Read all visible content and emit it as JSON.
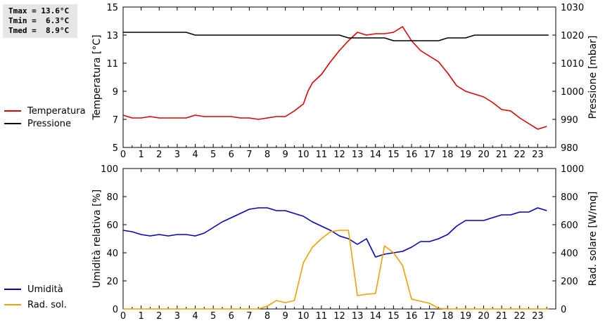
{
  "stats": {
    "tmax": "Tmax = 13.6°C",
    "tmin": "Tmin =  6.3°C",
    "tmed": "Tmed =  8.9°C"
  },
  "chart_data": [
    {
      "type": "line",
      "x_ticks": [
        "0",
        "1",
        "2",
        "3",
        "4",
        "5",
        "6",
        "7",
        "8",
        "9",
        "10",
        "11",
        "12",
        "13",
        "14",
        "15",
        "16",
        "17",
        "18",
        "19",
        "20",
        "21",
        "22",
        "23"
      ],
      "xlim": [
        0,
        24
      ],
      "ylabel": "Temperatura [°C]",
      "ylim": [
        5,
        15
      ],
      "y_ticks": [
        "5",
        "7",
        "9",
        "11",
        "13",
        "15"
      ],
      "y2label": "Pressione [mbar]",
      "y2lim": [
        980,
        1030
      ],
      "y2_ticks": [
        "980",
        "990",
        "1000",
        "1010",
        "1020",
        "1030"
      ],
      "legend": {
        "placement": "left",
        "entries": [
          "Temperatura",
          "Pressione"
        ]
      },
      "series": [
        {
          "name": "Temperatura",
          "axis": "left",
          "color": "#e00000",
          "x": [
            0,
            0.5,
            1,
            1.5,
            2,
            2.5,
            3,
            3.5,
            4,
            4.5,
            5,
            5.5,
            6,
            6.5,
            7,
            7.5,
            8,
            8.5,
            9,
            9.5,
            10,
            10.25,
            10.5,
            10.75,
            11,
            11.5,
            12,
            12.5,
            13,
            13.5,
            14,
            14.5,
            15,
            15.5,
            16,
            16.5,
            17,
            17.5,
            18,
            18.5,
            19,
            19.5,
            20,
            20.5,
            21,
            21.5,
            22,
            22.5,
            23,
            23.5
          ],
          "values": [
            7.3,
            7.1,
            7.1,
            7.2,
            7.1,
            7.1,
            7.1,
            7.1,
            7.3,
            7.2,
            7.2,
            7.2,
            7.2,
            7.1,
            7.1,
            7.0,
            7.1,
            7.2,
            7.2,
            7.6,
            8.1,
            9.0,
            9.6,
            9.9,
            10.2,
            11.1,
            11.9,
            12.6,
            13.2,
            13.0,
            13.1,
            13.1,
            13.2,
            13.6,
            12.6,
            11.9,
            11.5,
            11.1,
            10.3,
            9.4,
            9.0,
            8.8,
            8.6,
            8.2,
            7.7,
            7.6,
            7.1,
            6.7,
            6.3,
            6.5
          ]
        },
        {
          "name": "Pressione",
          "axis": "right",
          "color": "#000000",
          "x": [
            0,
            3.5,
            4,
            12,
            12.5,
            14.5,
            15,
            17.5,
            18,
            19,
            19.5,
            23.6
          ],
          "values": [
            1021,
            1021,
            1020,
            1020,
            1019,
            1019,
            1018,
            1018,
            1019,
            1019,
            1020,
            1020
          ]
        }
      ]
    },
    {
      "type": "line",
      "x_ticks": [
        "0",
        "1",
        "2",
        "3",
        "4",
        "5",
        "6",
        "7",
        "8",
        "9",
        "10",
        "11",
        "12",
        "13",
        "14",
        "15",
        "16",
        "17",
        "18",
        "19",
        "20",
        "21",
        "22",
        "23"
      ],
      "xlim": [
        0,
        24
      ],
      "ylabel": "Umidità relativa [%]",
      "ylim": [
        0,
        100
      ],
      "y_ticks": [
        "0",
        "20",
        "40",
        "60",
        "80",
        "100"
      ],
      "y2label": "Rad. solare [W/mq]",
      "y2lim": [
        0,
        1000
      ],
      "y2_ticks": [
        "0",
        "200",
        "400",
        "600",
        "800",
        "1000"
      ],
      "legend": {
        "placement": "left",
        "entries": [
          "Umidità",
          "Rad. sol."
        ]
      },
      "series": [
        {
          "name": "Umidità",
          "axis": "left",
          "color": "#0000c8",
          "x": [
            0,
            0.5,
            1,
            1.5,
            2,
            2.5,
            3,
            3.5,
            4,
            4.5,
            5,
            5.5,
            6,
            6.5,
            7,
            7.5,
            8,
            8.5,
            9,
            9.5,
            10,
            10.5,
            11,
            11.5,
            12,
            12.5,
            13,
            13.5,
            14,
            14.5,
            15,
            15.5,
            16,
            16.5,
            17,
            17.5,
            18,
            18.5,
            19,
            19.5,
            20,
            20.5,
            21,
            21.5,
            22,
            22.5,
            23,
            23.5
          ],
          "values": [
            56,
            55,
            53,
            52,
            53,
            52,
            53,
            53,
            52,
            54,
            58,
            62,
            65,
            68,
            71,
            72,
            72,
            70,
            70,
            68,
            66,
            62,
            59,
            56,
            52,
            50,
            46,
            50,
            37,
            39,
            40,
            41,
            44,
            48,
            48,
            50,
            53,
            59,
            63,
            63,
            63,
            65,
            67,
            67,
            69,
            69,
            72,
            70
          ]
        },
        {
          "name": "Rad. sol.",
          "axis": "right",
          "color": "#f0a000",
          "x": [
            0,
            7.5,
            8,
            8.5,
            9,
            9.5,
            10,
            10.5,
            11,
            11.5,
            12,
            12.5,
            13,
            13.5,
            14,
            14.5,
            15,
            15.5,
            16,
            16.5,
            17,
            17.5,
            18,
            23.6
          ],
          "values": [
            0,
            0,
            20,
            60,
            45,
            60,
            330,
            440,
            500,
            550,
            560,
            560,
            95,
            105,
            110,
            450,
            400,
            310,
            70,
            55,
            40,
            5,
            0,
            0
          ]
        }
      ]
    }
  ]
}
